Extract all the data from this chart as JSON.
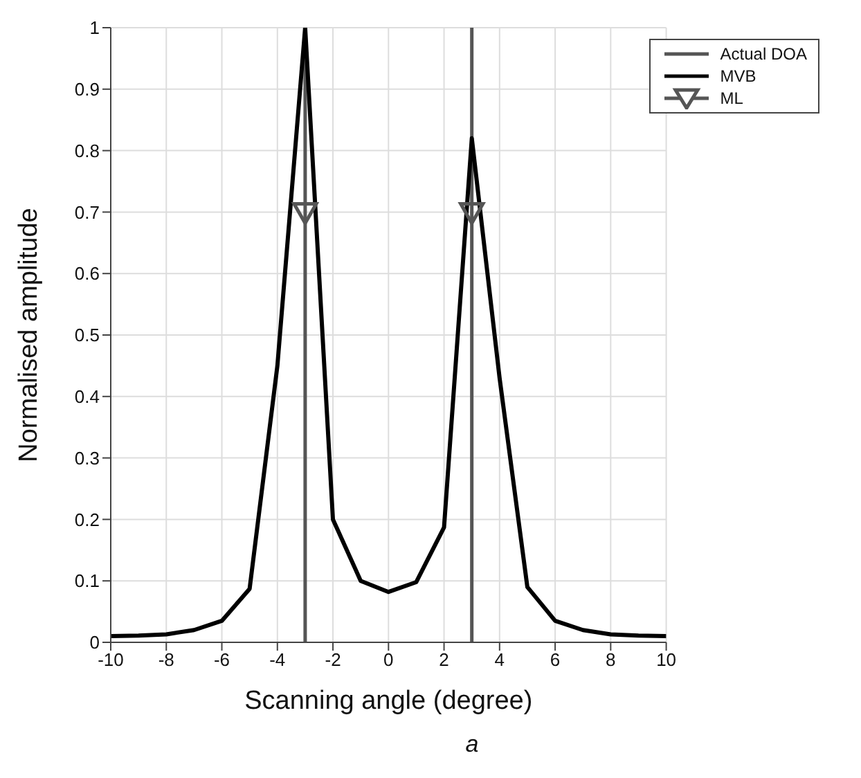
{
  "chart_data": {
    "type": "line",
    "xlabel": "Scanning angle (degree)",
    "ylabel": "Normalised amplitude",
    "annotations": [
      "a"
    ],
    "xlim": [
      -10,
      10
    ],
    "xticks": [
      -10,
      -8,
      -6,
      -4,
      -2,
      0,
      2,
      4,
      6,
      8,
      10
    ],
    "ylim": [
      0,
      1
    ],
    "yticks": [
      0,
      0.1,
      0.2,
      0.3,
      0.4,
      0.5,
      0.6,
      0.7,
      0.8,
      0.9,
      1
    ],
    "grid": true,
    "legend": "top right",
    "line_style": "solid",
    "series": [
      {
        "name": "Actual DOA",
        "color": "#555555",
        "marker": "none",
        "x": [
          -3,
          -3,
          0,
          3,
          3
        ],
        "values": [
          0,
          1,
          null,
          0,
          1
        ]
      },
      {
        "name": "MVB",
        "color": "#000000",
        "marker": "none",
        "x": [
          -10,
          -9,
          -8,
          -7,
          -6,
          -5,
          -4,
          -3,
          -2,
          -1,
          0,
          1,
          2,
          3,
          4,
          5,
          6,
          7,
          8,
          9,
          10
        ],
        "values": [
          0.01,
          0.011,
          0.013,
          0.02,
          0.035,
          0.087,
          0.45,
          1.0,
          0.2,
          0.1,
          0.082,
          0.098,
          0.187,
          0.82,
          0.43,
          0.09,
          0.035,
          0.02,
          0.013,
          0.011,
          0.01
        ]
      },
      {
        "name": "ML",
        "color": "#555555",
        "type": "scatter",
        "marker": "triangle",
        "x": [
          -3,
          3
        ],
        "values": [
          0.7,
          0.7
        ]
      }
    ]
  }
}
